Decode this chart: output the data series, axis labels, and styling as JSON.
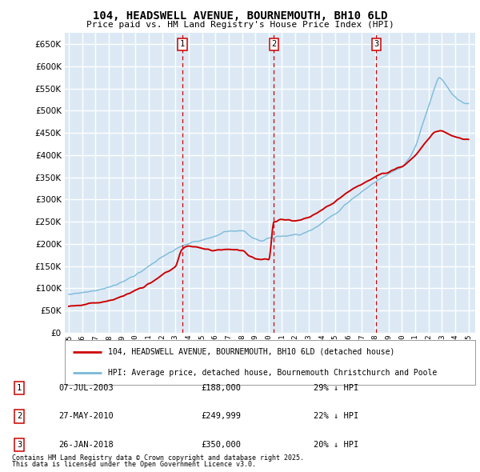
{
  "title_line1": "104, HEADSWELL AVENUE, BOURNEMOUTH, BH10 6LD",
  "title_line2": "Price paid vs. HM Land Registry's House Price Index (HPI)",
  "background_color": "#dce9f5",
  "grid_color": "#ffffff",
  "hpi_color": "#7ab8d9",
  "price_color": "#cc0000",
  "ylim": [
    0,
    675000
  ],
  "yticks": [
    0,
    50000,
    100000,
    150000,
    200000,
    250000,
    300000,
    350000,
    400000,
    450000,
    500000,
    550000,
    600000,
    650000
  ],
  "xlim_min": 1994.7,
  "xlim_max": 2025.5,
  "sales": [
    {
      "num": 1,
      "date": "07-JUL-2003",
      "price": 188000,
      "pct": "29%",
      "x_year": 2003.52
    },
    {
      "num": 2,
      "date": "27-MAY-2010",
      "price": 249999,
      "pct": "22%",
      "x_year": 2010.4
    },
    {
      "num": 3,
      "date": "26-JAN-2018",
      "price": 350000,
      "pct": "20%",
      "x_year": 2018.07
    }
  ],
  "legend_label_red": "104, HEADSWELL AVENUE, BOURNEMOUTH, BH10 6LD (detached house)",
  "legend_label_blue": "HPI: Average price, detached house, Bournemouth Christchurch and Poole",
  "footnote1": "Contains HM Land Registry data © Crown copyright and database right 2025.",
  "footnote2": "This data is licensed under the Open Government Licence v3.0."
}
